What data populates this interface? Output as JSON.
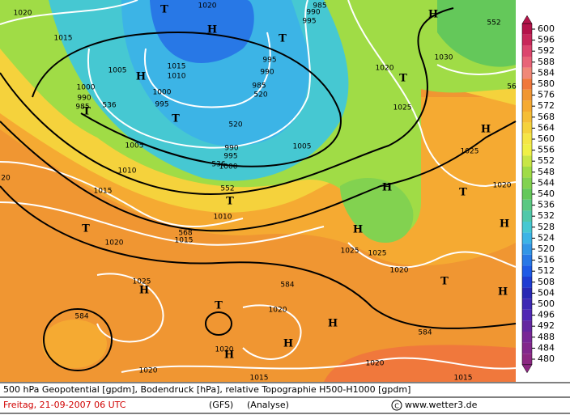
{
  "map": {
    "labels": [
      "1020",
      "1020",
      "985",
      "990",
      "995",
      "T",
      "H",
      "T",
      "H",
      "552",
      "1015",
      "1005",
      "H",
      "1015",
      "1010",
      "995",
      "990",
      "985",
      "520",
      "1000",
      "995",
      "T",
      "520",
      "1000",
      "990",
      "985",
      "T",
      "536",
      "1030",
      "1020",
      "T",
      "56",
      "1025",
      "H",
      "1005",
      "990",
      "995",
      "1000",
      "536",
      "1005",
      "1025",
      "1010",
      "1015",
      "552",
      "T",
      "H",
      "T",
      "1020",
      "20",
      "1010",
      "T",
      "568",
      "1015",
      "1020",
      "H",
      "1025",
      "1025",
      "1020",
      "H",
      "1025",
      "H",
      "584",
      "T",
      "H",
      "T",
      "1020",
      "584",
      "H",
      "584",
      "H",
      "1020",
      "H",
      "1020",
      "1020",
      "1015",
      "1015"
    ]
  },
  "colorbar": {
    "levels": [
      600,
      596,
      592,
      588,
      584,
      580,
      576,
      572,
      568,
      564,
      560,
      556,
      552,
      548,
      544,
      540,
      536,
      532,
      528,
      524,
      520,
      516,
      512,
      508,
      504,
      500,
      496,
      492,
      488,
      484,
      480
    ],
    "colors": [
      "#b4144a",
      "#c8285a",
      "#dc466e",
      "#e86478",
      "#f08878",
      "#f0783c",
      "#f09632",
      "#f5aa32",
      "#f5be37",
      "#f5d23c",
      "#f5e646",
      "#f0f046",
      "#c8e646",
      "#a0dc46",
      "#82d250",
      "#64c85a",
      "#5ac882",
      "#50c8aa",
      "#46c8d2",
      "#3cb4e6",
      "#3296e6",
      "#2878e6",
      "#1e5ae6",
      "#1e3cd2",
      "#2828b4",
      "#3c28b4",
      "#5028b4",
      "#6428a0",
      "#782896",
      "#82288c",
      "#8c2882"
    ]
  },
  "footer": {
    "description": "500 hPa Geopotential [gpdm], Bodendruck [hPa], relative Topographie H500-H1000 [gpdm]",
    "date": "Freitag, 21-09-2007  06 UTC",
    "model": "(GFS)",
    "run": "(Analyse)",
    "copyright": "www.wetter3.de"
  }
}
